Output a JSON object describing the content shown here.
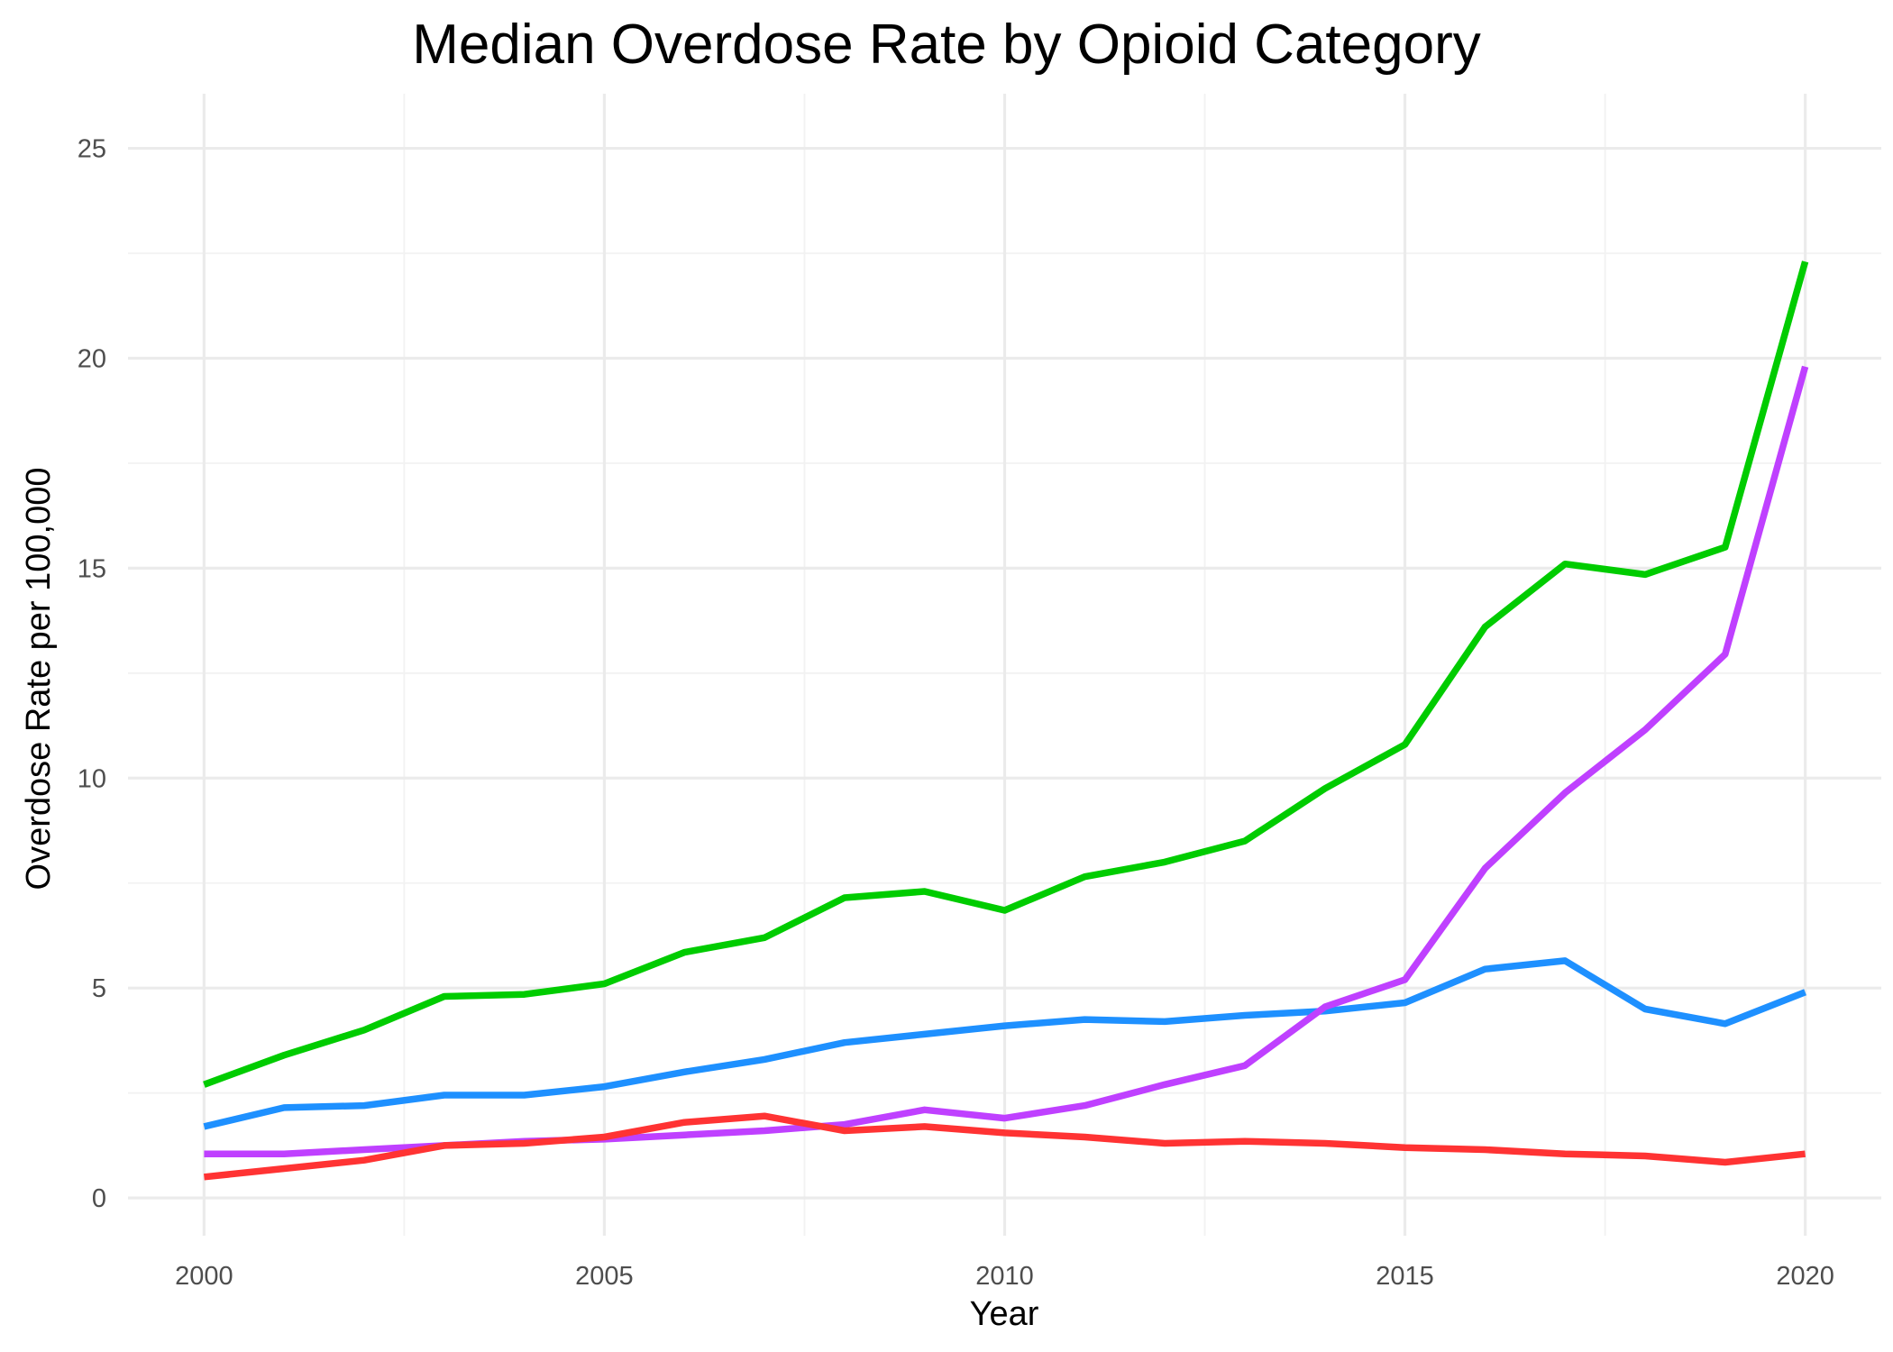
{
  "chart_data": {
    "type": "line",
    "title": "Median Overdose Rate by Opioid Category",
    "xlabel": "Year",
    "ylabel": "Overdose Rate per 100,000",
    "xlim": [
      1999.05,
      2020.95
    ],
    "ylim": [
      -0.9,
      26.3
    ],
    "xticks": [
      2000,
      2005,
      2010,
      2015,
      2020
    ],
    "yticks": [
      0,
      5,
      10,
      15,
      20,
      25
    ],
    "yminor": [
      2.5,
      7.5,
      12.5,
      17.5,
      22.5
    ],
    "grid": true,
    "legend": "none",
    "x": [
      2000,
      2001,
      2002,
      2003,
      2004,
      2005,
      2006,
      2007,
      2008,
      2009,
      2010,
      2011,
      2012,
      2013,
      2014,
      2015,
      2016,
      2017,
      2018,
      2019,
      2020
    ],
    "series": [
      {
        "color": "#00cc00",
        "values": [
          2.7,
          3.4,
          4.0,
          4.8,
          4.85,
          5.1,
          5.85,
          6.2,
          7.15,
          7.3,
          6.85,
          7.65,
          8.0,
          8.5,
          9.75,
          10.8,
          13.6,
          15.1,
          14.85,
          15.5,
          22.3
        ]
      },
      {
        "color": "#1e90ff",
        "values": [
          1.7,
          2.15,
          2.2,
          2.45,
          2.45,
          2.65,
          3.0,
          3.3,
          3.7,
          3.9,
          4.1,
          4.25,
          4.2,
          4.35,
          4.45,
          4.65,
          5.45,
          5.65,
          4.5,
          4.15,
          4.9
        ]
      },
      {
        "color": "#bf40ff",
        "values": [
          1.05,
          1.05,
          1.15,
          1.25,
          1.35,
          1.4,
          1.5,
          1.6,
          1.75,
          2.1,
          1.9,
          2.2,
          2.7,
          3.15,
          4.55,
          5.2,
          7.85,
          9.65,
          11.15,
          12.95,
          19.8
        ]
      },
      {
        "color": "#ff3333",
        "values": [
          0.5,
          0.7,
          0.9,
          1.25,
          1.3,
          1.45,
          1.8,
          1.95,
          1.6,
          1.7,
          1.55,
          1.45,
          1.3,
          1.35,
          1.3,
          1.2,
          1.15,
          1.05,
          1.0,
          0.85,
          1.05
        ]
      }
    ]
  }
}
